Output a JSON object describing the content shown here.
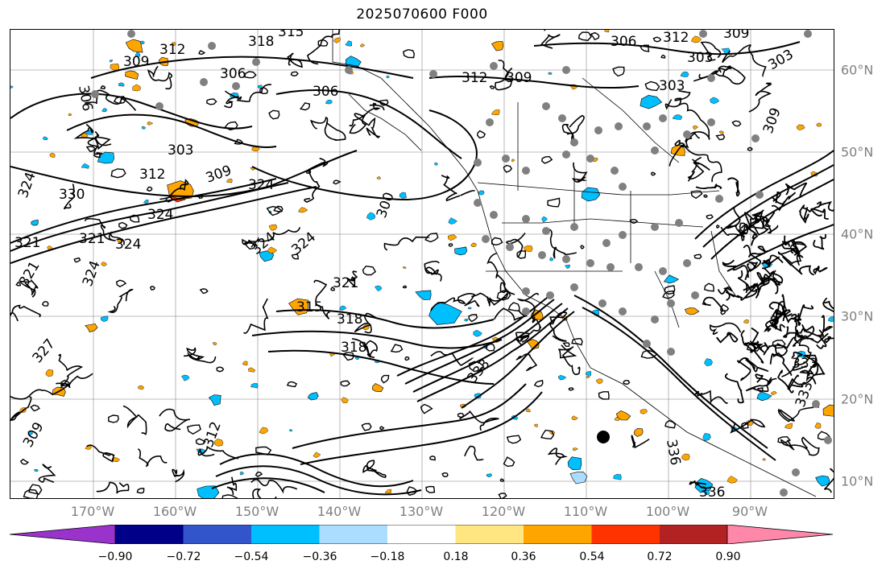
{
  "title": "2025070600 F000",
  "lat_labels": [
    "60°N",
    "50°N",
    "40°N",
    "30°N",
    "20°N",
    "10°N"
  ],
  "lon_labels": [
    "170°W",
    "160°W",
    "150°W",
    "140°W",
    "130°W",
    "120°W",
    "110°W",
    "100°W",
    "90°W"
  ],
  "contour_labels": [
    "318",
    "315",
    "312",
    "309",
    "306",
    "303",
    "300",
    "321",
    "324",
    "327",
    "330",
    "333",
    "336"
  ],
  "colorbar": {
    "ticks": [
      "−0.90",
      "−0.72",
      "−0.54",
      "−0.36",
      "−0.18",
      "0.18",
      "0.36",
      "0.54",
      "0.72",
      "0.90"
    ],
    "colors": [
      "#9933cc",
      "#000088",
      "#3355cc",
      "#00bfff",
      "#aaddff",
      "#ffffff",
      "#ffe680",
      "#ffa500",
      "#ff3300",
      "#b22222",
      "#ff88aa"
    ]
  },
  "map": {
    "contour_color": "#000000",
    "gridline_color": "#808080",
    "station_color": "#808080",
    "label_color": "#808080"
  }
}
